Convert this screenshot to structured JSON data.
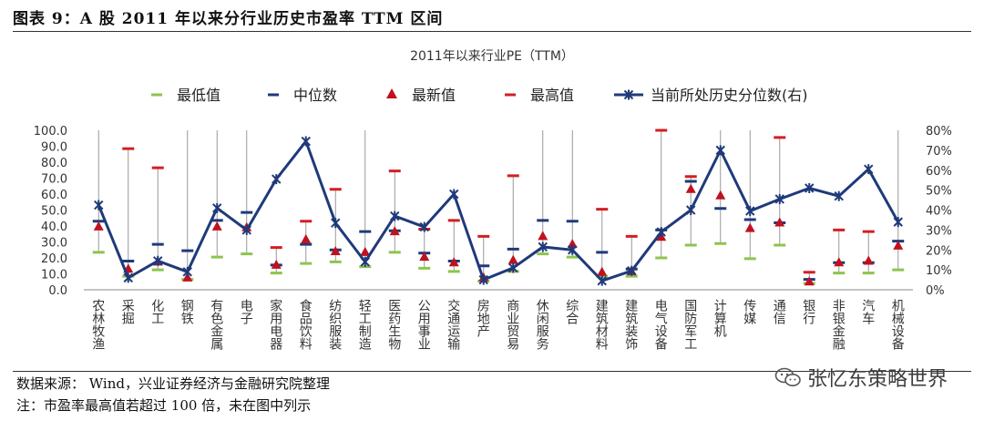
{
  "figure": {
    "title": "图表 9：A 股 2011 年以来分行业历史市盈率 TTM 区间",
    "source": "数据来源： Wind，兴业证券经济与金融研究院整理",
    "note": "注：市盈率最高值若超过 100 倍，未在图中列示",
    "watermark": "张忆东策略世界"
  },
  "chart_data": {
    "type": "line",
    "title": "2011年以来行业PE（TTM）",
    "legend_position": "top",
    "legend": [
      "最低值",
      "中位数",
      "最新值",
      "最高值",
      "当前所处历史分位数(右)"
    ],
    "colors": {
      "min": "#8dc44e",
      "median": "#1f3a7a",
      "latest": "#c0111f",
      "max": "#d21f24",
      "pct": "#1f3a7a"
    },
    "ylim": [
      0,
      100
    ],
    "y_ticks": [
      "0.0",
      "10.0",
      "20.0",
      "30.0",
      "40.0",
      "50.0",
      "60.0",
      "70.0",
      "80.0",
      "90.0",
      "100.0"
    ],
    "y2lim": [
      0,
      80
    ],
    "y2_ticks": [
      "0%",
      "10%",
      "20%",
      "30%",
      "40%",
      "50%",
      "60%",
      "70%",
      "80%"
    ],
    "categories": [
      "农林牧渔",
      "采掘",
      "化工",
      "钢铁",
      "有色金属",
      "电子",
      "家用电器",
      "食品饮料",
      "纺织服装",
      "轻工制造",
      "医药生物",
      "公用事业",
      "交通运输",
      "房地产",
      "商业贸易",
      "休闲服务",
      "综合",
      "建筑材料",
      "建筑装饰",
      "电气设备",
      "国防军工",
      "计算机",
      "传媒",
      "通信",
      "银行",
      "非银金融",
      "汽车",
      "机械设备"
    ],
    "series": [
      {
        "name": "最低值",
        "values": [
          23.5,
          8.5,
          12.5,
          6.5,
          20.5,
          22.5,
          10.5,
          16.5,
          17.5,
          14.5,
          23.5,
          13.5,
          11.5,
          5.5,
          11.5,
          22.5,
          20.5,
          8.5,
          8.5,
          20,
          28,
          29,
          19.5,
          28,
          4,
          10.5,
          10.5,
          12.5
        ]
      },
      {
        "name": "中位数",
        "values": [
          43,
          18,
          28.5,
          24.5,
          43.5,
          48.5,
          15.5,
          28.5,
          25,
          36.5,
          37,
          23,
          18,
          15,
          25.5,
          43.5,
          43,
          23.5,
          13,
          37.5,
          68,
          51,
          44,
          42,
          6.5,
          17,
          17,
          30.5
        ]
      },
      {
        "name": "最新值",
        "values": [
          39.5,
          13,
          17.5,
          7.5,
          39.5,
          39,
          15.5,
          31.5,
          24,
          23.5,
          36.5,
          20.5,
          17,
          7.5,
          18.5,
          33.5,
          28.5,
          11,
          11.5,
          33,
          63,
          59,
          38.5,
          42,
          5,
          17,
          18,
          27.5
        ]
      },
      {
        "name": "最高值",
        "values": [
          null,
          88.5,
          76.5,
          null,
          null,
          null,
          26.5,
          43,
          63,
          null,
          74.5,
          38,
          43.5,
          33.5,
          71.5,
          null,
          null,
          50.5,
          33.5,
          100,
          71,
          null,
          null,
          95.5,
          11,
          37.5,
          36.5,
          null
        ]
      },
      {
        "name": "当前所处历史分位数(右)",
        "axis": "right",
        "values": [
          42.5,
          6,
          14.5,
          9,
          41,
          30,
          55.5,
          74.5,
          33.5,
          14,
          37,
          31.5,
          48,
          5,
          11,
          21.5,
          20,
          4.5,
          9.5,
          29,
          40,
          70,
          39.5,
          45.5,
          51,
          47,
          60.5,
          34
        ]
      }
    ]
  }
}
